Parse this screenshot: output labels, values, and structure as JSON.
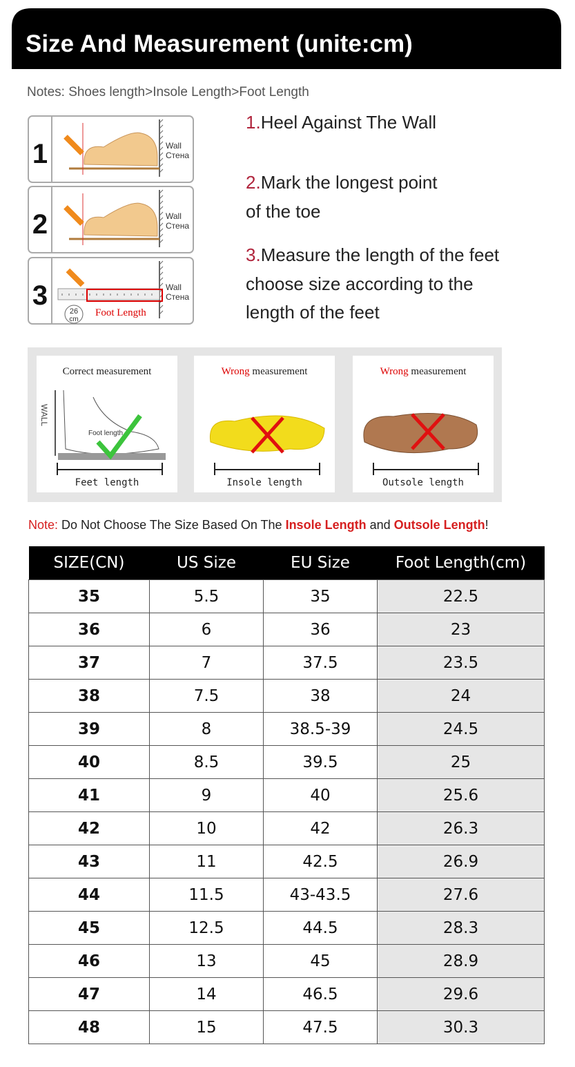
{
  "header": {
    "title": "Size And Measurement (unite:cm)"
  },
  "notes": "Notes: Shoes length>Insole Length>Foot Length",
  "illustrations": [
    {
      "number": "1",
      "wall": "Wall",
      "wall_ru": "Стена"
    },
    {
      "number": "2",
      "wall": "Wall",
      "wall_ru": "Стена"
    },
    {
      "number": "3",
      "wall": "Wall",
      "wall_ru": "Стена",
      "ruler": "26",
      "ruler_unit": "cm",
      "foot_length": "Foot Length"
    }
  ],
  "steps": [
    {
      "number": "1.",
      "lines": [
        "Heel Against The Wall"
      ]
    },
    {
      "number": "2.",
      "lines": [
        "Mark the longest point",
        "of the toe"
      ]
    },
    {
      "number": "3.",
      "lines": [
        "Measure the length of the feet",
        "choose size according to the",
        "length of the feet"
      ]
    }
  ],
  "panels": [
    {
      "verdict": "Correct",
      "label": "measurement",
      "wall": "WALL",
      "inner": "Foot length",
      "measure": "Feet length"
    },
    {
      "verdict": "Wrong",
      "label": "measurement",
      "measure": "Insole length"
    },
    {
      "verdict": "Wrong",
      "label": "measurement",
      "measure": "Outsole length"
    }
  ],
  "note": {
    "prefix": "Note:",
    "text": " Do Not Choose The Size Based On The ",
    "insole": "Insole Length",
    "and": " and ",
    "outsole": "Outsole Length",
    "end": "!"
  },
  "table": {
    "headers": [
      "SIZE(CN)",
      "US Size",
      "EU Size",
      "Foot Length(cm)"
    ],
    "rows": [
      [
        "35",
        "5.5",
        "35",
        "22.5"
      ],
      [
        "36",
        "6",
        "36",
        "23"
      ],
      [
        "37",
        "7",
        "37.5",
        "23.5"
      ],
      [
        "38",
        "7.5",
        "38",
        "24"
      ],
      [
        "39",
        "8",
        "38.5-39",
        "24.5"
      ],
      [
        "40",
        "8.5",
        "39.5",
        "25"
      ],
      [
        "41",
        "9",
        "40",
        "25.6"
      ],
      [
        "42",
        "10",
        "42",
        "26.3"
      ],
      [
        "43",
        "11",
        "42.5",
        "26.9"
      ],
      [
        "44",
        "11.5",
        "43-43.5",
        "27.6"
      ],
      [
        "45",
        "12.5",
        "44.5",
        "28.3"
      ],
      [
        "46",
        "13",
        "45",
        "28.9"
      ],
      [
        "47",
        "14",
        "46.5",
        "29.6"
      ],
      [
        "48",
        "15",
        "47.5",
        "30.3"
      ]
    ]
  }
}
